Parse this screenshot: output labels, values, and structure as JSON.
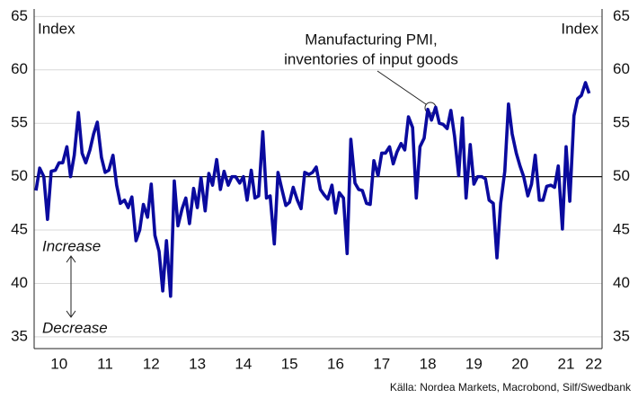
{
  "chart_data": {
    "type": "line",
    "annotations": {
      "left_axis_label": "Index",
      "right_axis_label": "Index",
      "series_label_1": "Manufacturing PMI,",
      "series_label_2": "inventories of input goods",
      "increase": "Increase",
      "decrease": "Decrease",
      "source": "Källa: Nordea Markets, Macrobond, Silf/Swedbank"
    },
    "x": [
      10,
      10.08,
      10.17,
      10.25,
      10.33,
      10.42,
      10.5,
      10.58,
      10.67,
      10.75,
      10.83,
      10.92,
      11,
      11.08,
      11.17,
      11.25,
      11.33,
      11.42,
      11.5,
      11.58,
      11.67,
      11.75,
      11.83,
      11.92,
      12,
      12.08,
      12.17,
      12.25,
      12.33,
      12.42,
      12.5,
      12.58,
      12.67,
      12.75,
      12.83,
      12.92,
      13,
      13.08,
      13.17,
      13.25,
      13.33,
      13.42,
      13.5,
      13.58,
      13.67,
      13.75,
      13.83,
      13.92,
      14,
      14.08,
      14.17,
      14.25,
      14.33,
      14.42,
      14.5,
      14.58,
      14.67,
      14.75,
      14.83,
      14.92,
      15,
      15.08,
      15.17,
      15.25,
      15.33,
      15.42,
      15.5,
      15.58,
      15.67,
      15.75,
      15.83,
      15.92,
      16,
      16.08,
      16.17,
      16.25,
      16.33,
      16.42,
      16.5,
      16.58,
      16.67,
      16.75,
      16.83,
      16.92,
      17,
      17.08,
      17.17,
      17.25,
      17.33,
      17.42,
      17.5,
      17.58,
      17.67,
      17.75,
      17.83,
      17.92,
      18,
      18.08,
      18.17,
      18.25,
      18.33,
      18.42,
      18.5,
      18.58,
      18.67,
      18.75,
      18.83,
      18.92,
      19,
      19.08,
      19.17,
      19.25,
      19.33,
      19.42,
      19.5,
      19.58,
      19.67,
      19.75,
      19.83,
      19.92,
      20,
      20.08,
      20.17,
      20.25,
      20.33,
      20.42,
      20.5,
      20.58,
      20.67,
      20.75,
      20.83,
      20.92,
      21,
      21.08,
      21.17,
      21.25,
      21.33,
      21.42,
      21.5,
      21.58,
      21.67,
      21.75,
      21.83,
      21.92,
      22
    ],
    "series": [
      {
        "color": "#0a0a9e",
        "values": [
          48.7,
          50.8,
          50,
          46,
          50.5,
          50.6,
          51.3,
          51.3,
          52.8,
          50,
          52,
          56,
          52.2,
          51.3,
          52.5,
          54,
          55.1,
          51.8,
          50.4,
          50.6,
          52,
          49.2,
          47.5,
          47.8,
          47.1,
          48.1,
          44,
          45,
          47.4,
          46.2,
          49.3,
          44.5,
          43,
          39.3,
          44,
          38.8,
          49.6,
          45.4,
          47,
          48,
          45.6,
          48.9,
          47.1,
          49.9,
          46.8,
          50.3,
          49.2,
          51.6,
          48.8,
          50.5,
          49.2,
          50,
          50,
          49.4,
          50,
          47.8,
          50.6,
          48,
          48.2,
          54.2,
          48,
          48.2,
          43.7,
          50.4,
          48.9,
          47.3,
          47.6,
          49,
          47.8,
          47,
          50.4,
          50.2,
          50.4,
          50.9,
          48.8,
          48.3,
          47.9,
          49.2,
          46.6,
          48.5,
          48,
          42.8,
          53.5,
          49.4,
          48.8,
          48.7,
          47.5,
          47.4,
          51.5,
          50.1,
          52.2,
          52.2,
          52.8,
          51.2,
          52.3,
          53.1,
          52.5,
          55.6,
          54.6,
          48,
          52.8,
          53.6,
          56.3,
          55.3,
          56.5,
          55,
          54.9,
          54.5,
          56.2,
          53.8,
          50.1,
          55.5,
          48,
          53,
          49.3,
          50,
          50,
          49.8,
          47.8,
          47.5,
          42.4,
          47.5,
          50.5,
          56.8,
          54,
          52.2,
          51,
          50,
          48.2,
          49.3,
          52,
          47.8,
          47.8,
          49.1,
          49.2,
          49,
          51,
          45.1,
          52.8,
          47.7,
          55.7,
          57.3,
          57.6,
          58.8,
          57.8
        ]
      }
    ],
    "reference_line": 50,
    "xlim": [
      9.96,
      22.28
    ],
    "xticks": [
      {
        "value": 10.5,
        "label": "10"
      },
      {
        "value": 11.5,
        "label": "11"
      },
      {
        "value": 12.5,
        "label": "12"
      },
      {
        "value": 13.5,
        "label": "13"
      },
      {
        "value": 14.5,
        "label": "14"
      },
      {
        "value": 15.5,
        "label": "15"
      },
      {
        "value": 16.5,
        "label": "16"
      },
      {
        "value": 17.5,
        "label": "17"
      },
      {
        "value": 18.5,
        "label": "18"
      },
      {
        "value": 19.5,
        "label": "19"
      },
      {
        "value": 20.5,
        "label": "20"
      },
      {
        "value": 21.5,
        "label": "21"
      },
      {
        "value": 22.1,
        "label": "22"
      }
    ],
    "ylim": [
      33.9,
      65.7
    ],
    "yticks": [
      35,
      40,
      45,
      50,
      55,
      60,
      65
    ],
    "y2lim": [
      33.9,
      65.7
    ],
    "y2ticks": [
      35,
      40,
      45,
      50,
      55,
      60,
      65
    ],
    "grid": true
  }
}
